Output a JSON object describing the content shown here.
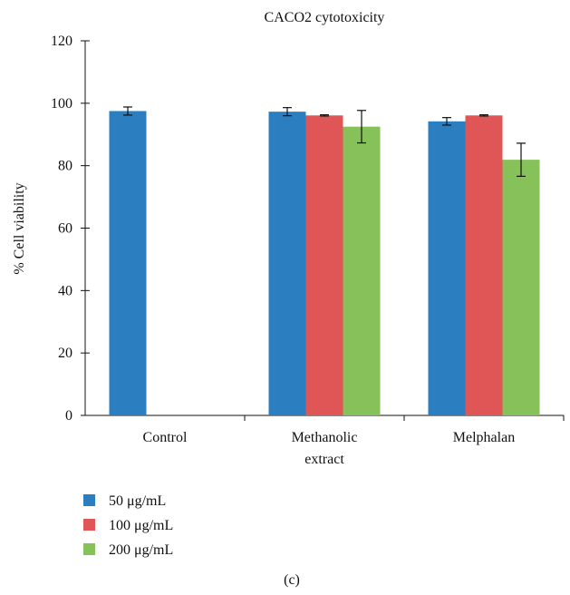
{
  "chart_data": {
    "type": "bar",
    "title": "CACO2 cytotoxicity",
    "ylabel": "% Cell viability",
    "xlabel": "",
    "ylim": [
      0,
      120
    ],
    "yticks": [
      0,
      20,
      40,
      60,
      80,
      100,
      120
    ],
    "categories": [
      [
        "Control"
      ],
      [
        "Methanolic",
        "extract"
      ],
      [
        "Melphalan"
      ]
    ],
    "legend_position": "bottom-left",
    "grid": false,
    "series": [
      {
        "name": "50 μg/mL",
        "color": "#2b7fc1",
        "values": [
          97.5,
          97.3,
          94.2
        ],
        "errors": [
          1.3,
          1.3,
          1.2
        ]
      },
      {
        "name": "100 μg/mL",
        "color": "#e05656",
        "values": [
          null,
          96.1,
          96.1
        ],
        "errors": [
          null,
          0.2,
          0.2
        ]
      },
      {
        "name": "200 μg/mL",
        "color": "#86c15a",
        "values": [
          null,
          92.5,
          81.9
        ],
        "errors": [
          null,
          5.2,
          5.3
        ]
      }
    ]
  },
  "caption": "(c)"
}
